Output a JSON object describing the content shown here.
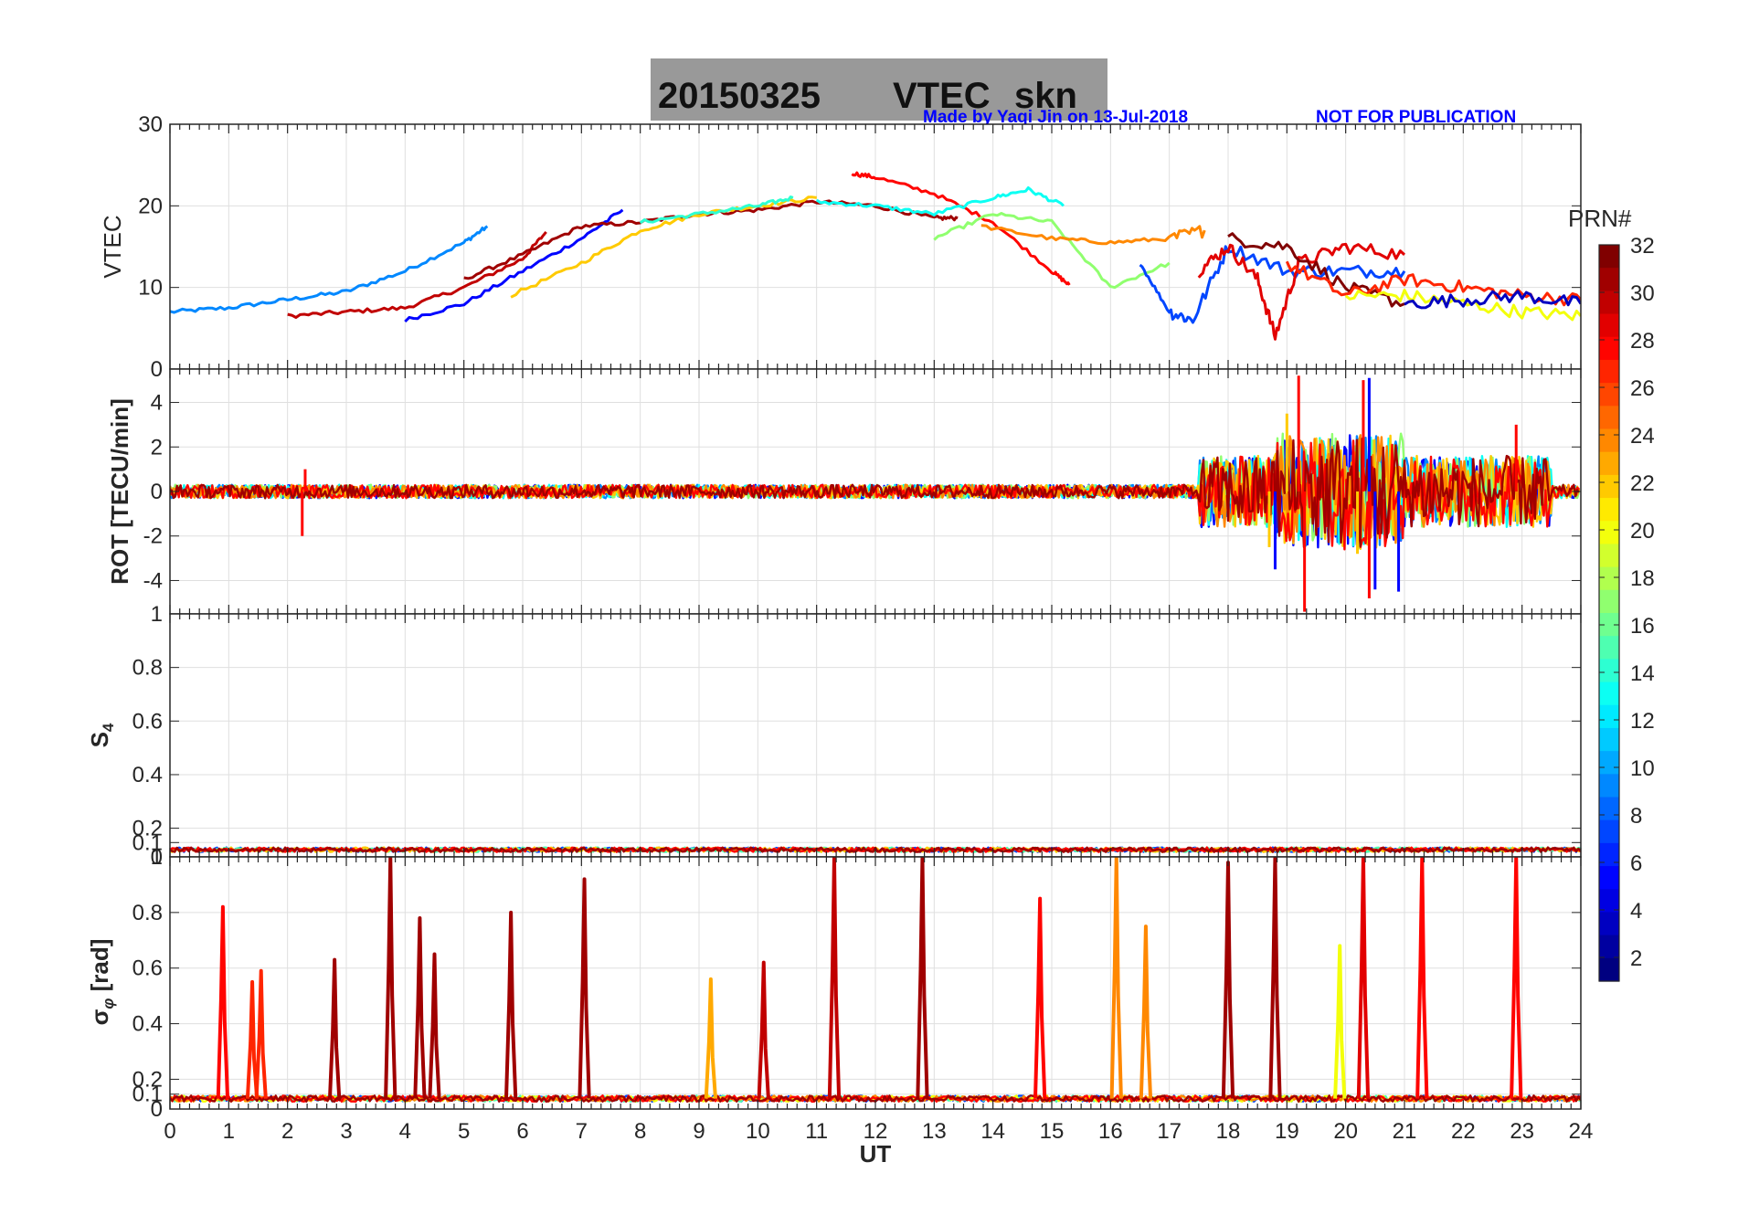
{
  "title": {
    "date": "20150325",
    "product": "VTEC",
    "station": "skn",
    "box_color": "#999999"
  },
  "credit": {
    "author": "Made by Yaqi Jin on 13-Jul-2018",
    "notice": "NOT FOR PUBLICATION",
    "color": "#0000ff"
  },
  "colorbar": {
    "label": "PRN#",
    "ticks": [
      "2",
      "4",
      "6",
      "8",
      "10",
      "12",
      "14",
      "16",
      "18",
      "20",
      "22",
      "24",
      "26",
      "28",
      "30",
      "32"
    ],
    "range": [
      1,
      32
    ],
    "colormap": "jet"
  },
  "chart_data": [
    {
      "type": "line",
      "panel": "vtec",
      "ylabel": "VTEC",
      "ylim": [
        0,
        30
      ],
      "yticks": [
        "0",
        "10",
        "20",
        "30"
      ],
      "grid": true,
      "xlim": [
        0,
        24
      ],
      "series": [
        {
          "prn": 9,
          "x": [
            0,
            1,
            2,
            3,
            4,
            5,
            5.4
          ],
          "y": [
            7,
            7.5,
            8.5,
            9.5,
            12,
            15.5,
            17.5
          ]
        },
        {
          "prn": 30,
          "x": [
            2,
            3,
            4,
            5,
            6,
            6.4
          ],
          "y": [
            6.5,
            7,
            7.5,
            10,
            13.5,
            16.8
          ]
        },
        {
          "prn": 5,
          "x": [
            4,
            5,
            6,
            7,
            7.7
          ],
          "y": [
            6,
            8,
            12,
            16,
            19.5
          ]
        },
        {
          "prn": 31,
          "x": [
            5,
            6,
            7,
            8,
            9,
            10,
            11,
            12,
            13,
            13.4
          ],
          "y": [
            11,
            14,
            17.5,
            18,
            19,
            19.5,
            20.5,
            20,
            18.5,
            18.5
          ]
        },
        {
          "prn": 22,
          "x": [
            5.8,
            7,
            8,
            9,
            10,
            11
          ],
          "y": [
            9,
            13,
            17,
            19,
            20,
            21
          ]
        },
        {
          "prn": 14,
          "x": [
            8,
            9,
            10,
            10.6
          ],
          "y": [
            18,
            19,
            20,
            21
          ]
        },
        {
          "prn": 28,
          "x": [
            11.6,
            12,
            13,
            14,
            15,
            15.3
          ],
          "y": [
            24,
            23.5,
            21.5,
            18,
            12,
            10.3
          ]
        },
        {
          "prn": 13,
          "x": [
            11,
            12,
            13,
            14,
            14.6,
            15.2
          ],
          "y": [
            20.5,
            20,
            19,
            21,
            22,
            20
          ]
        },
        {
          "prn": 17,
          "x": [
            13,
            14,
            15,
            16,
            17
          ],
          "y": [
            16,
            19,
            18,
            10,
            13
          ]
        },
        {
          "prn": 24,
          "x": [
            13.8,
            15,
            16,
            17,
            17.6
          ],
          "y": [
            17.5,
            16,
            15.5,
            16,
            17
          ]
        },
        {
          "prn": 7,
          "x": [
            16.5,
            17,
            17.4,
            18,
            19,
            20,
            21
          ],
          "y": [
            13,
            7,
            6,
            15,
            12,
            12,
            12
          ]
        },
        {
          "prn": 29,
          "x": [
            17.5,
            18,
            18.5,
            18.8,
            19.2,
            20,
            21
          ],
          "y": [
            12,
            15,
            11,
            4,
            13,
            15,
            14
          ]
        },
        {
          "prn": 32,
          "x": [
            18,
            19,
            20,
            21
          ],
          "y": [
            16,
            15,
            10,
            8
          ]
        },
        {
          "prn": 27,
          "x": [
            19,
            20,
            21,
            22,
            23,
            24
          ],
          "y": [
            13,
            9,
            11,
            10,
            9,
            8.5
          ]
        },
        {
          "prn": 20,
          "x": [
            20,
            21,
            22,
            23,
            24
          ],
          "y": [
            9,
            9,
            8,
            7,
            6.5
          ]
        },
        {
          "prn": 3,
          "x": [
            21,
            22,
            23,
            24
          ],
          "y": [
            8,
            8.5,
            9,
            8
          ]
        }
      ]
    },
    {
      "type": "line",
      "panel": "rot",
      "ylabel": "ROT [TECU/min]",
      "ylim": [
        -5.5,
        5.5
      ],
      "yticks": [
        "-4",
        "-2",
        "0",
        "2",
        "4"
      ],
      "grid": true,
      "xlim": [
        0,
        24
      ],
      "description_values": {
        "quiet_level": [
          -0.5,
          0.5
        ],
        "disturbed_interval_UT": [
          17.5,
          23.5
        ],
        "max": 5.3,
        "min": -5.4
      },
      "series": [
        {
          "prn": 28,
          "x": [
            2.2,
            2.25,
            2.3,
            19.2,
            19.3,
            20.3,
            20.4,
            22.9
          ],
          "y": [
            0,
            -2,
            1,
            5.2,
            -5.4,
            5.0,
            -4.8,
            3.0
          ]
        },
        {
          "prn": 5,
          "x": [
            18.8,
            19.0,
            20.4,
            20.5,
            20.9
          ],
          "y": [
            -3.5,
            2.0,
            5.1,
            -4.4,
            -4.5
          ]
        },
        {
          "prn": 22,
          "x": [
            18.7,
            19.0,
            20.2
          ],
          "y": [
            -2.5,
            3.5,
            -2.8
          ]
        }
      ]
    },
    {
      "type": "line",
      "panel": "s4",
      "ylabel": "S4",
      "ylim": [
        0,
        1
      ],
      "yticks": [
        "0",
        "0.1",
        "0.2",
        "0.4",
        "0.6",
        "0.8",
        "1"
      ],
      "grid": true,
      "xlim": [
        0,
        24
      ],
      "description_values": {
        "baseline": 0.05,
        "max": 0.14
      }
    },
    {
      "type": "line",
      "panel": "sigma_phi",
      "ylabel": "σ_φ [rad]",
      "ylim": [
        0,
        1
      ],
      "yticks": [
        "0",
        "0.1",
        "0.2",
        "0.4",
        "0.6",
        "0.8",
        "1"
      ],
      "grid": true,
      "xlim": [
        0,
        24
      ],
      "xlabel": "UT",
      "xticks": [
        "0",
        "1",
        "2",
        "3",
        "4",
        "5",
        "6",
        "7",
        "8",
        "9",
        "10",
        "11",
        "12",
        "13",
        "14",
        "15",
        "16",
        "17",
        "18",
        "19",
        "20",
        "21",
        "22",
        "23",
        "24"
      ],
      "description_values": {
        "baseline": 0.07
      },
      "spikes": [
        {
          "prn": 28,
          "x": 0.9,
          "y": 0.82
        },
        {
          "prn": 27,
          "x": 1.4,
          "y": 0.55
        },
        {
          "prn": 27,
          "x": 1.55,
          "y": 0.59
        },
        {
          "prn": 31,
          "x": 2.8,
          "y": 0.63
        },
        {
          "prn": 31,
          "x": 3.75,
          "y": 1.0
        },
        {
          "prn": 31,
          "x": 4.25,
          "y": 0.78
        },
        {
          "prn": 31,
          "x": 4.5,
          "y": 0.65
        },
        {
          "prn": 31,
          "x": 5.8,
          "y": 0.8
        },
        {
          "prn": 31,
          "x": 7.05,
          "y": 0.92
        },
        {
          "prn": 23,
          "x": 9.2,
          "y": 0.56
        },
        {
          "prn": 30,
          "x": 10.1,
          "y": 0.62
        },
        {
          "prn": 30,
          "x": 11.3,
          "y": 1.0
        },
        {
          "prn": 31,
          "x": 12.8,
          "y": 1.0
        },
        {
          "prn": 28,
          "x": 14.8,
          "y": 0.85
        },
        {
          "prn": 24,
          "x": 16.1,
          "y": 1.0
        },
        {
          "prn": 24,
          "x": 16.6,
          "y": 0.75
        },
        {
          "prn": 31,
          "x": 18.0,
          "y": 0.98
        },
        {
          "prn": 31,
          "x": 18.8,
          "y": 1.0
        },
        {
          "prn": 20,
          "x": 19.9,
          "y": 0.68
        },
        {
          "prn": 29,
          "x": 20.3,
          "y": 1.0
        },
        {
          "prn": 28,
          "x": 21.3,
          "y": 1.0
        },
        {
          "prn": 28,
          "x": 22.9,
          "y": 1.0
        }
      ]
    }
  ]
}
